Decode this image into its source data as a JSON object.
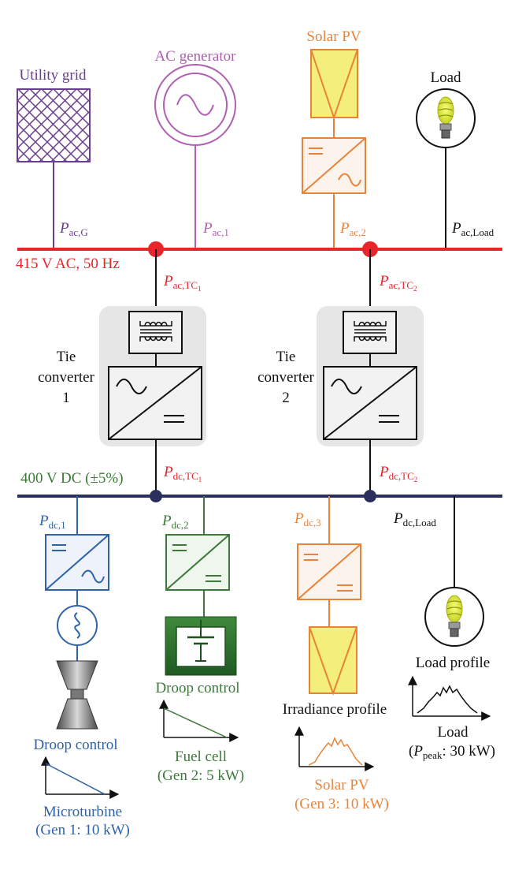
{
  "colors": {
    "ac_bus": "#e8252a",
    "dc_bus": "#2b2f5e",
    "utility": "#6b3d8f",
    "ac_gen": "#b05fb1",
    "solar": "#e8843a",
    "black": "#111111",
    "microturbine": "#2f62a8",
    "fuel_cell": "#3d7a3a",
    "panel_fill": "#f3ef7a",
    "converter_bg": "#e6e6e6",
    "box_fill": "#f2f2f2"
  },
  "icons": {
    "utility": "grid-lattice-icon",
    "ac_generator": "ac-source-icon",
    "solar_panel": "solar-panel-icon",
    "bulb": "light-bulb-icon",
    "transformer": "transformer-icon",
    "dc_ac": "dc-ac-converter-icon",
    "dc_dc": "dc-dc-converter-icon",
    "turbine": "turbine-icon",
    "fuel_cell": "fuel-cell-icon"
  },
  "labels": {
    "utility_grid": "Utility grid",
    "ac_generator": "AC generator",
    "solar_pv_top": "Solar PV",
    "load_top": "Load",
    "ac_bus": "415 V AC, 50 Hz",
    "dc_bus": "400 V DC (±5%)",
    "tie1_line1": "Tie",
    "tie1_line2": "converter",
    "tie1_line3": "1",
    "tie2_line1": "Tie",
    "tie2_line2": "converter",
    "tie2_line3": "2",
    "droop_mt": "Droop control",
    "droop_fc": "Droop control",
    "mt_line1": "Microturbine",
    "mt_line2": "(Gen 1: 10 kW)",
    "fc_line1": "Fuel cell",
    "fc_line2": "(Gen 2: 5 kW)",
    "irradiance": "Irradiance profile",
    "pv_line1": "Solar PV",
    "pv_line2": "(Gen 3: 10 kW)",
    "load_profile": "Load profile",
    "load_bottom": "Load",
    "load_peak_open": "(",
    "load_peak_p": "P",
    "load_peak_sub": "peak",
    "load_peak_rest": ": 30 kW)"
  },
  "power": {
    "p": "P",
    "ac_g": "ac,G",
    "ac_1": "ac,1",
    "ac_2": "ac,2",
    "ac_load": "ac,Load",
    "ac_tc1": "ac,TC",
    "ac_tc1_n": "1",
    "ac_tc2": "ac,TC",
    "ac_tc2_n": "2",
    "dc_tc1": "dc,TC",
    "dc_tc1_n": "1",
    "dc_tc2": "dc,TC",
    "dc_tc2_n": "2",
    "dc_1": "dc,1",
    "dc_2": "dc,2",
    "dc_3": "dc,3",
    "dc_load": "dc,Load"
  }
}
